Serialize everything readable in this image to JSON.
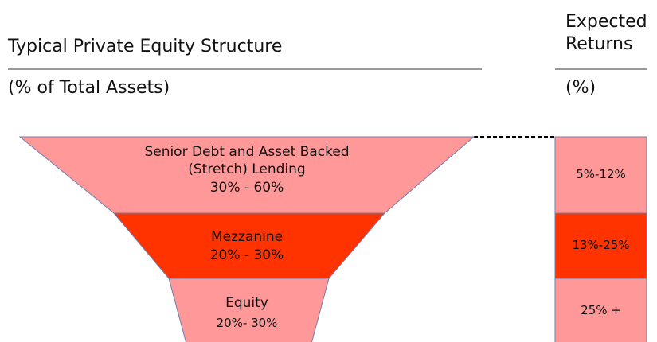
{
  "header": {
    "title": "Typical Private Equity Structure",
    "subtitle": "(% of Total Assets)",
    "returns_title": "Expected Returns",
    "returns_subtitle": "(%)"
  },
  "tiers": [
    {
      "name": "Senior Debt and Asset Backed (Stretch) Lending",
      "share": "30% - 60%",
      "returns": "5%-12%"
    },
    {
      "name": "Mezzanine",
      "share": "20% - 30%",
      "returns": "13%-25%"
    },
    {
      "name": "Equity",
      "share": "20%- 30%",
      "returns": "25% +"
    }
  ]
}
